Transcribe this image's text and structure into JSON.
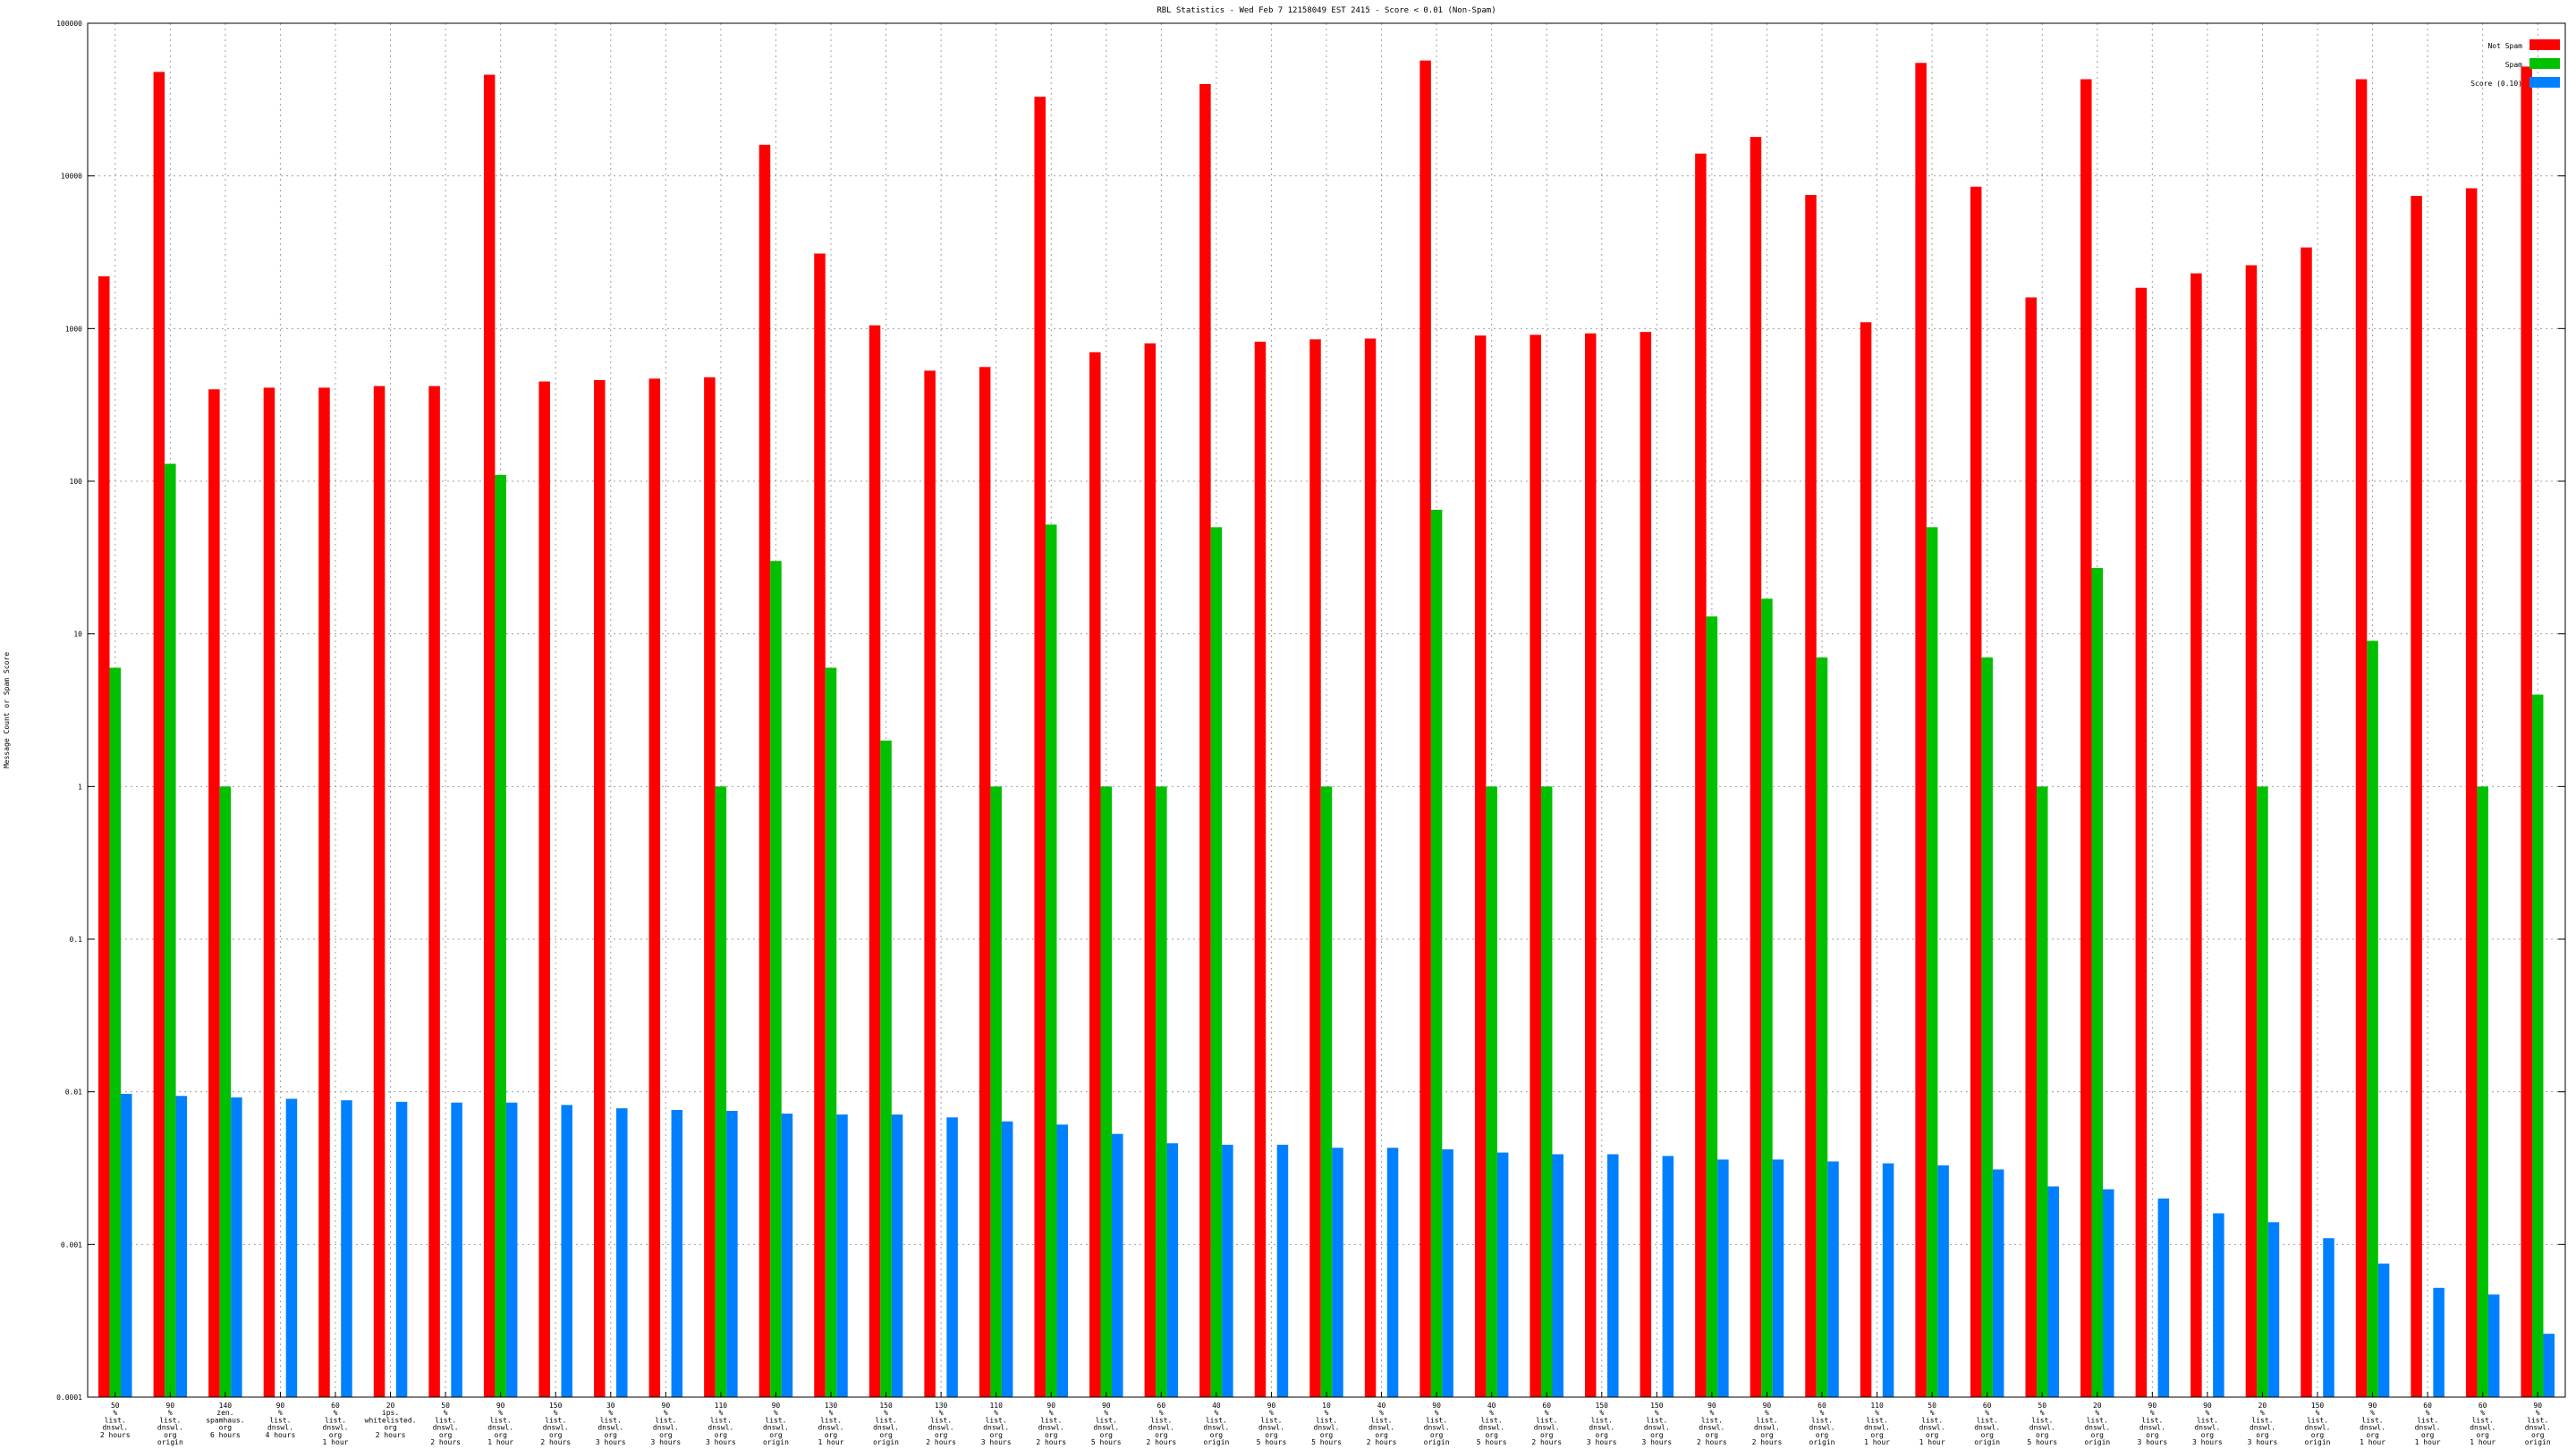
{
  "chart_data": {
    "type": "bar",
    "title": "RBL Statistics - Wed Feb  7 12158049 EST 2415 - Score < 0.01 (Non-Spam)",
    "ylabel": "Message Count or Spam Score",
    "xlabel": "",
    "yscale": "log",
    "ylim": [
      0.0001,
      100000
    ],
    "yticks": [
      "0.0001",
      "0.001",
      "0.01",
      "0.1",
      "1",
      "10",
      "100",
      "1000",
      "10000",
      "100000"
    ],
    "grid": true,
    "legend_position": "top-right",
    "categories": [
      [
        "50",
        "%",
        "list.",
        "dnswl.",
        "2 hours"
      ],
      [
        "90",
        "%",
        "list.",
        "dnswl.",
        "org",
        "origin"
      ],
      [
        "140",
        "zen.",
        "spamhaus.",
        "org",
        "6 hours"
      ],
      [
        "90",
        "%",
        "list.",
        "dnswl.",
        "4 hours"
      ],
      [
        "60",
        "%",
        "list.",
        "dnswl.",
        "org",
        "1 hour"
      ],
      [
        "20",
        "ips.",
        "whitelisted.",
        "org",
        "2 hours"
      ],
      [
        "50",
        "%",
        "list.",
        "dnswl.",
        "org",
        "2 hours"
      ],
      [
        "90",
        "%",
        "list.",
        "dnswl.",
        "org",
        "1 hour"
      ],
      [
        "150",
        "%",
        "list.",
        "dnswl.",
        "org",
        "2 hours"
      ],
      [
        "30",
        "%",
        "list.",
        "dnswl.",
        "org",
        "3 hours"
      ],
      [
        "90",
        "%",
        "list.",
        "dnswl.",
        "org",
        "3 hours"
      ],
      [
        "110",
        "%",
        "list.",
        "dnswl.",
        "org",
        "3 hours"
      ],
      [
        "90",
        "%",
        "list.",
        "dnswl.",
        "org",
        "origin"
      ],
      [
        "130",
        "%",
        "list.",
        "dnswl.",
        "org",
        "1 hour"
      ],
      [
        "150",
        "%",
        "list.",
        "dnswl.",
        "org",
        "origin"
      ],
      [
        "130",
        "%",
        "list.",
        "dnswl.",
        "org",
        "2 hours"
      ],
      [
        "110",
        "%",
        "list.",
        "dnswl.",
        "org",
        "3 hours"
      ],
      [
        "90",
        "%",
        "list.",
        "dnswl.",
        "org",
        "2 hours"
      ],
      [
        "90",
        "%",
        "list.",
        "dnswl.",
        "org",
        "5 hours"
      ],
      [
        "60",
        "%",
        "list.",
        "dnswl.",
        "org",
        "2 hours"
      ],
      [
        "40",
        "%",
        "list.",
        "dnswl.",
        "org",
        "origin"
      ],
      [
        "90",
        "%",
        "list.",
        "dnswl.",
        "org",
        "5 hours"
      ],
      [
        "10",
        "%",
        "list.",
        "dnswl.",
        "org",
        "5 hours"
      ],
      [
        "40",
        "%",
        "list.",
        "dnswl.",
        "org",
        "2 hours"
      ],
      [
        "90",
        "%",
        "list.",
        "dnswl.",
        "org",
        "origin"
      ],
      [
        "40",
        "%",
        "list.",
        "dnswl.",
        "org",
        "5 hours"
      ],
      [
        "60",
        "%",
        "list.",
        "dnswl.",
        "org",
        "2 hours"
      ],
      [
        "150",
        "%",
        "list.",
        "dnswl.",
        "org",
        "3 hours"
      ],
      [
        "150",
        "%",
        "list.",
        "dnswl.",
        "org",
        "3 hours"
      ],
      [
        "90",
        "%",
        "list.",
        "dnswl.",
        "org",
        "2 hours"
      ],
      [
        "90",
        "%",
        "list.",
        "dnswl.",
        "org",
        "2 hours"
      ],
      [
        "60",
        "%",
        "list.",
        "dnswl.",
        "org",
        "origin"
      ],
      [
        "110",
        "%",
        "list.",
        "dnswl.",
        "org",
        "1 hour"
      ],
      [
        "50",
        "%",
        "list.",
        "dnswl.",
        "org",
        "1 hour"
      ],
      [
        "60",
        "%",
        "list.",
        "dnswl.",
        "org",
        "origin"
      ],
      [
        "50",
        "%",
        "list.",
        "dnswl.",
        "org",
        "5 hours"
      ],
      [
        "20",
        "%",
        "list.",
        "dnswl.",
        "org",
        "origin"
      ],
      [
        "90",
        "%",
        "list.",
        "dnswl.",
        "org",
        "3 hours"
      ],
      [
        "90",
        "%",
        "list.",
        "dnswl.",
        "org",
        "3 hours"
      ],
      [
        "20",
        "%",
        "list.",
        "dnswl.",
        "org",
        "3 hours"
      ],
      [
        "150",
        "%",
        "list.",
        "dnswl.",
        "org",
        "origin"
      ],
      [
        "90",
        "%",
        "list.",
        "dnswl.",
        "org",
        "1 hour"
      ],
      [
        "60",
        "%",
        "list.",
        "dnswl.",
        "org",
        "1 hour"
      ],
      [
        "60",
        "%",
        "list.",
        "dnswl.",
        "org",
        "1 hour"
      ],
      [
        "90",
        "%",
        "list.",
        "dnswl.",
        "org",
        "origin"
      ]
    ],
    "series": [
      {
        "name": "Not Spam",
        "color": "#ff0000",
        "values": [
          2200,
          48000,
          400,
          410,
          410,
          420,
          420,
          46000,
          450,
          460,
          470,
          480,
          16000,
          3100,
          1050,
          530,
          560,
          33000,
          700,
          800,
          40000,
          820,
          850,
          860,
          57000,
          900,
          910,
          930,
          950,
          14000,
          18000,
          7500,
          1100,
          55000,
          8500,
          1600,
          43000,
          1850,
          2300,
          2600,
          3400,
          43000,
          7400,
          8300,
          52000
        ]
      },
      {
        "name": "Spam",
        "color": "#00c000",
        "values": [
          6,
          130,
          1,
          null,
          null,
          null,
          null,
          110,
          null,
          null,
          null,
          1,
          30,
          6,
          2,
          null,
          1,
          52,
          1,
          1,
          50,
          null,
          1,
          null,
          65,
          1,
          1,
          null,
          null,
          13,
          17,
          7,
          null,
          50,
          7,
          1,
          27,
          null,
          null,
          1,
          null,
          9,
          null,
          1,
          4
        ]
      },
      {
        "name": "Score (0.10)",
        "color": "#0080ff",
        "values": [
          0.0097,
          0.0094,
          0.0092,
          0.009,
          0.0088,
          0.0086,
          0.0085,
          0.0085,
          0.0082,
          0.0078,
          0.0076,
          0.0075,
          0.0072,
          0.0071,
          0.0071,
          0.0068,
          0.0064,
          0.0061,
          0.0053,
          0.0046,
          0.0045,
          0.0045,
          0.0043,
          0.0043,
          0.0042,
          0.004,
          0.0039,
          0.0039,
          0.0038,
          0.0036,
          0.0036,
          0.0035,
          0.0034,
          0.0033,
          0.0031,
          0.0024,
          0.0023,
          0.002,
          0.0016,
          0.0014,
          0.0011,
          0.00075,
          0.00052,
          0.00047,
          0.00026
        ]
      }
    ]
  }
}
